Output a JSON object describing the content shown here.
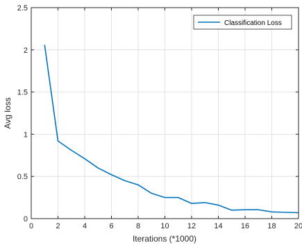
{
  "chart_data": {
    "type": "line",
    "title": "",
    "xlabel": "Iterations (*1000)",
    "ylabel": "Avg loss",
    "xlim": [
      0,
      20
    ],
    "ylim": [
      0,
      2.5
    ],
    "xticks": [
      0,
      2,
      4,
      6,
      8,
      10,
      12,
      14,
      16,
      18,
      20
    ],
    "yticks": [
      0,
      0.5,
      1,
      1.5,
      2,
      2.5
    ],
    "xtick_labels": [
      "0",
      "2",
      "4",
      "6",
      "8",
      "10",
      "12",
      "14",
      "16",
      "18",
      "20"
    ],
    "ytick_labels": [
      "0",
      "0.5",
      "1",
      "1.5",
      "2",
      "2.5"
    ],
    "grid": true,
    "legend_position": "top-right",
    "series": [
      {
        "name": "Classification Loss",
        "color": "#0072BD",
        "x": [
          1,
          2,
          3,
          4,
          5,
          6,
          7,
          8,
          9,
          10,
          11,
          12,
          13,
          14,
          15,
          16,
          17,
          18,
          19,
          20
        ],
        "y": [
          2.06,
          0.92,
          0.81,
          0.71,
          0.6,
          0.52,
          0.45,
          0.4,
          0.3,
          0.25,
          0.25,
          0.18,
          0.19,
          0.16,
          0.1,
          0.105,
          0.105,
          0.08,
          0.075,
          0.07
        ]
      }
    ]
  }
}
